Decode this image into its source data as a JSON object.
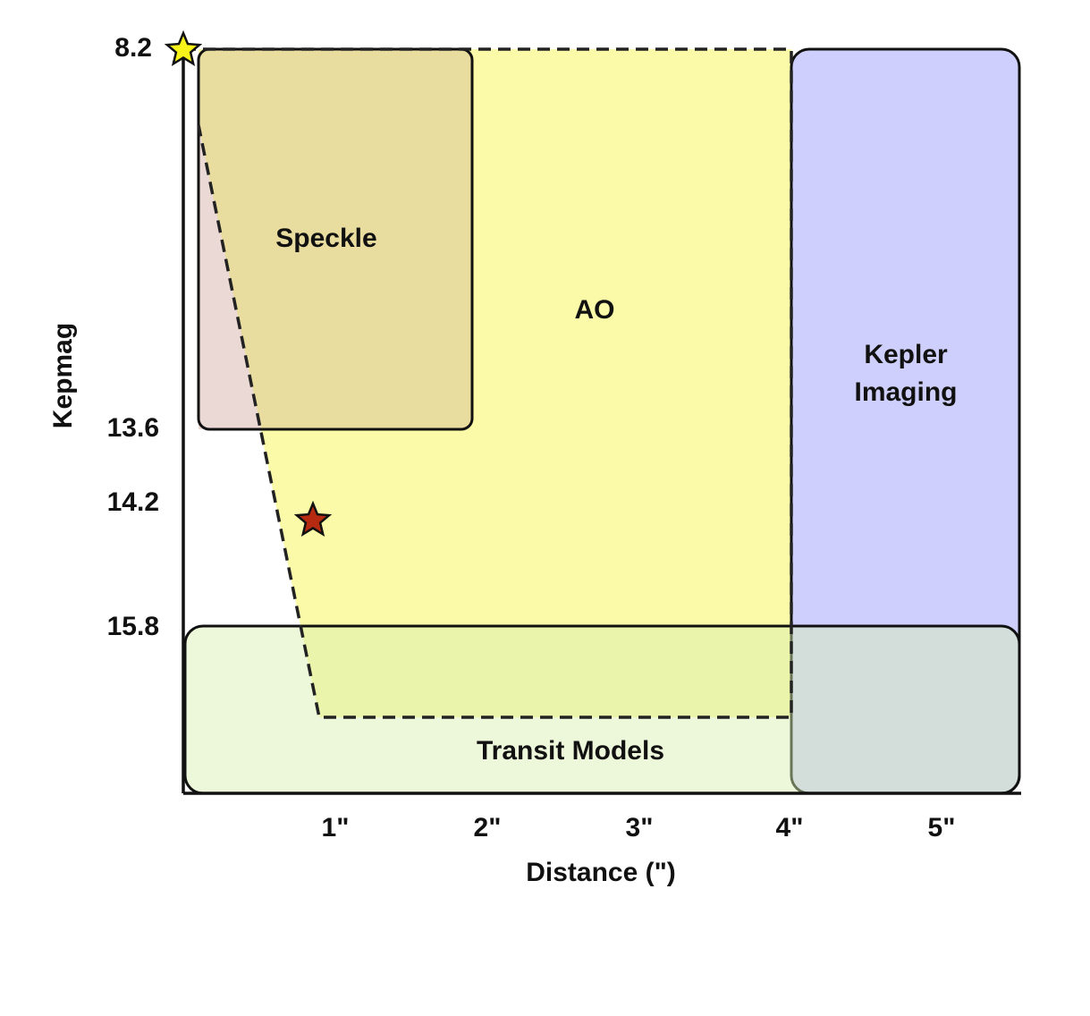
{
  "axes": {
    "x_label": "Distance (\")",
    "y_label": "Kepmag",
    "x_ticks": [
      "1\"",
      "2\"",
      "3\"",
      "4\"",
      "5\""
    ],
    "y_ticks": [
      "8.2",
      "13.6",
      "14.2",
      "15.8"
    ]
  },
  "regions": {
    "speckle": "Speckle",
    "ao": "AO",
    "kepler": [
      "Kepler",
      "Imaging"
    ],
    "transit": "Transit Models"
  }
}
